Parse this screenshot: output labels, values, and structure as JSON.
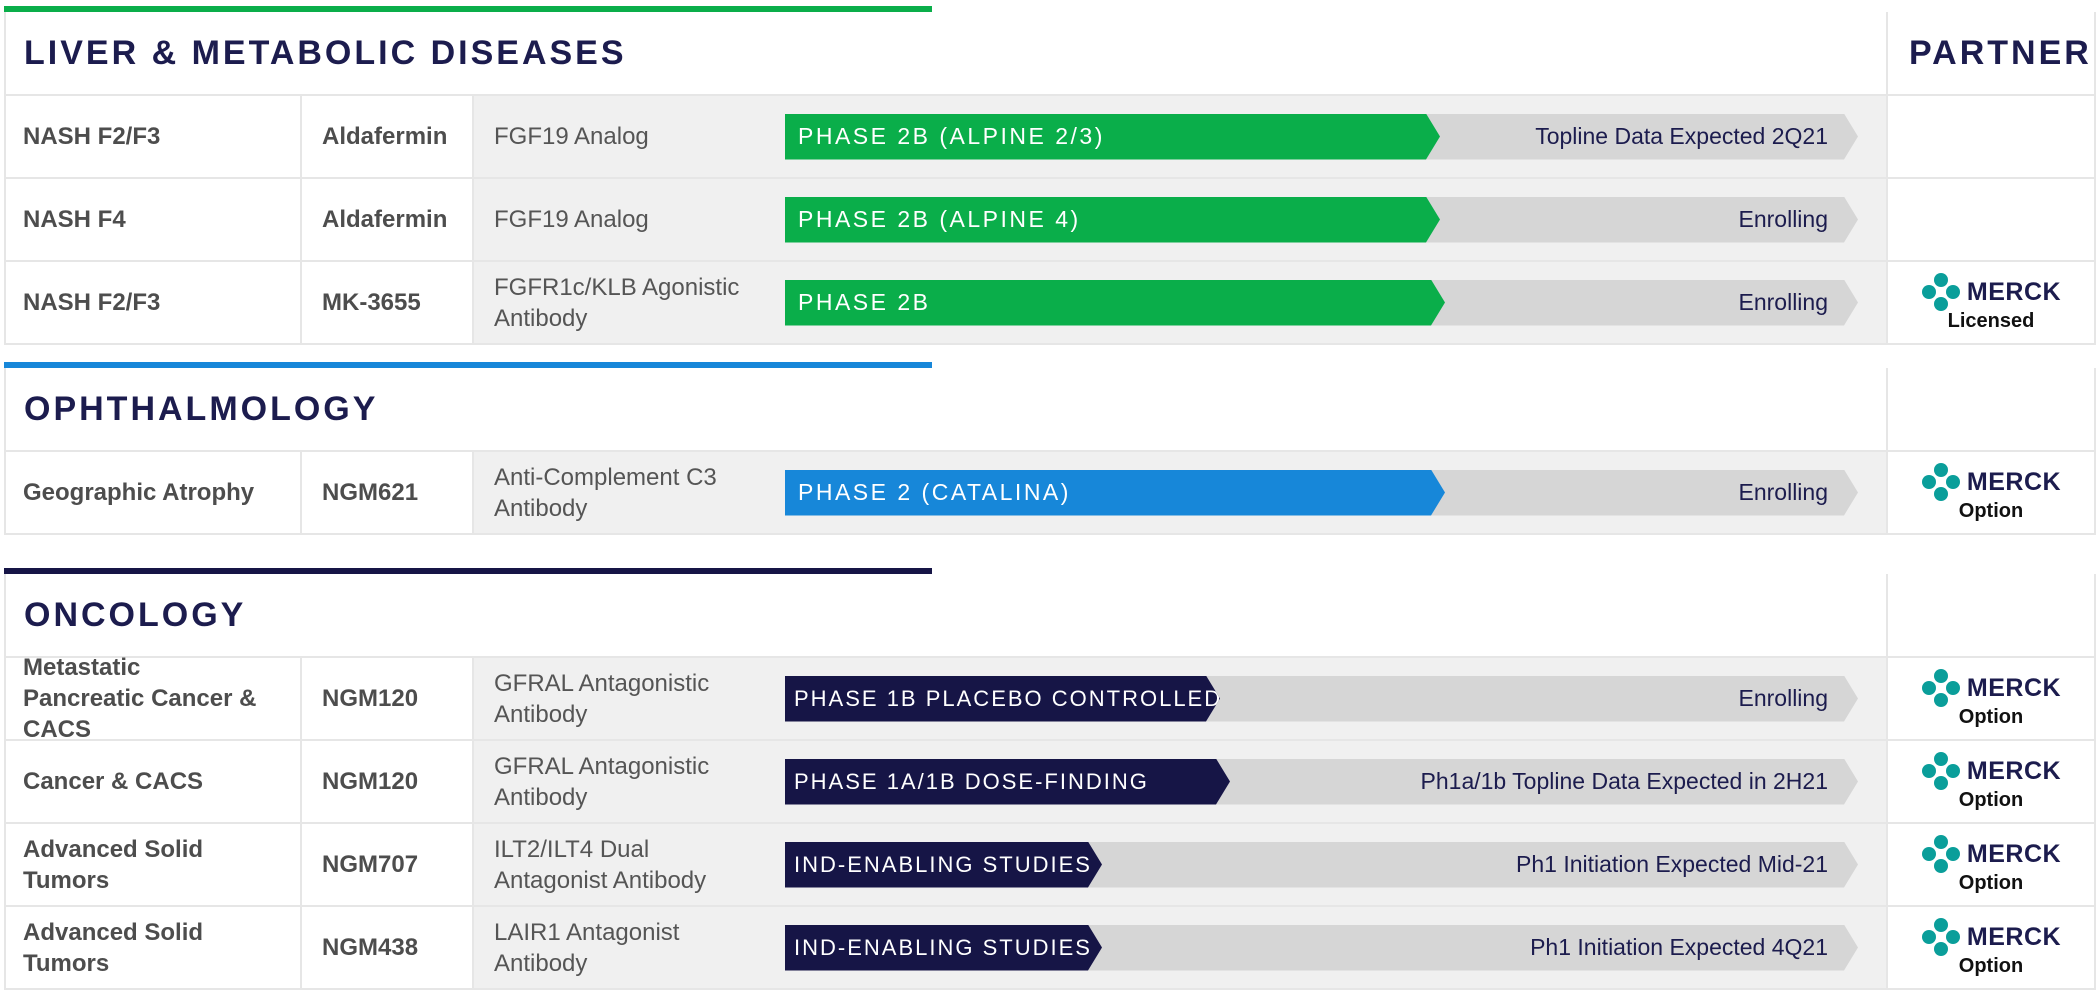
{
  "colors": {
    "green": "#0aae4a",
    "blue": "#1787d9",
    "navy": "#161546",
    "track": "#d6d6d6"
  },
  "sections": [
    {
      "title": "LIVER & METABOLIC DISEASES",
      "partner_header": "PARTNER",
      "rows": [
        {
          "indication": "NASH F2/F3",
          "candidate": "Aldafermin",
          "mechanism": "FGF19 Analog",
          "phase": "PHASE 2B (ALPINE 2/3)",
          "progress": 0.61,
          "status": "Topline Data Expected 2Q21",
          "partner": "",
          "partner_status": ""
        },
        {
          "indication": "NASH F4",
          "candidate": "Aldafermin",
          "mechanism": "FGF19 Analog",
          "phase": "PHASE 2B (ALPINE 4)",
          "progress": 0.61,
          "status": "Enrolling",
          "partner": "",
          "partner_status": ""
        },
        {
          "indication": "NASH F2/F3",
          "candidate": "MK-3655",
          "mechanism": "FGFR1c/KLB Agonistic Antibody",
          "phase": "PHASE 2B",
          "progress": 0.615,
          "status": "Enrolling",
          "partner": "MERCK",
          "partner_status": "Licensed"
        }
      ]
    },
    {
      "title": "OPHTHALMOLOGY",
      "rows": [
        {
          "indication": "Geographic Atrophy",
          "candidate": "NGM621",
          "mechanism": "Anti-Complement C3 Antibody",
          "phase": "PHASE 2 (CATALINA)",
          "progress": 0.615,
          "status": "Enrolling",
          "partner": "MERCK",
          "partner_status": "Option"
        }
      ]
    },
    {
      "title": "ONCOLOGY",
      "rows": [
        {
          "indication": "Metastatic Pancreatic Cancer & CACS",
          "candidate": "NGM120",
          "mechanism": "GFRAL Antagonistic Antibody",
          "phase": "PHASE 1B PLACEBO CONTROLLED",
          "progress": 0.405,
          "status": "Enrolling",
          "partner": "MERCK",
          "partner_status": "Option"
        },
        {
          "indication": "Cancer & CACS",
          "candidate": "NGM120",
          "mechanism": "GFRAL Antagonistic Antibody",
          "phase": "PHASE 1A/1B DOSE-FINDING",
          "progress": 0.415,
          "status": "Ph1a/1b Topline Data Expected in 2H21",
          "partner": "MERCK",
          "partner_status": "Option"
        },
        {
          "indication": "Advanced Solid Tumors",
          "candidate": "NGM707",
          "mechanism": "ILT2/ILT4 Dual Antagonist Antibody",
          "phase": "IND-ENABLING STUDIES",
          "progress": 0.295,
          "status": "Ph1 Initiation Expected Mid-21",
          "partner": "MERCK",
          "partner_status": "Option"
        },
        {
          "indication": "Advanced Solid Tumors",
          "candidate": "NGM438",
          "mechanism": "LAIR1 Antagonist Antibody",
          "phase": "IND-ENABLING STUDIES",
          "progress": 0.295,
          "status": "Ph1 Initiation Expected 4Q21",
          "partner": "MERCK",
          "partner_status": "Option"
        }
      ]
    }
  ]
}
